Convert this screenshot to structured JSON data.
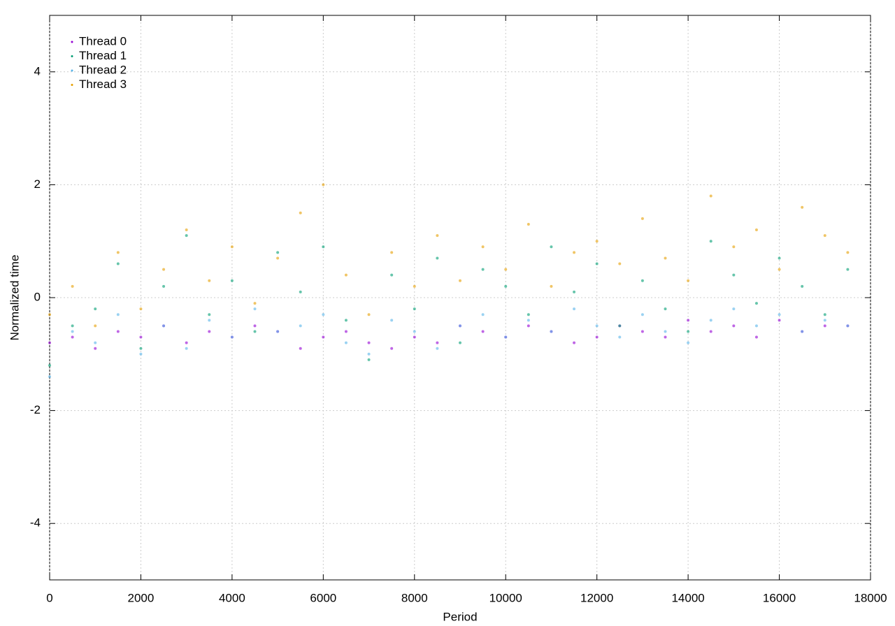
{
  "chart_data": {
    "type": "scatter",
    "xlabel": "Period",
    "ylabel": "Normalized time",
    "xlim": [
      0,
      18000
    ],
    "ylim": [
      -5,
      5
    ],
    "xticks": [
      0,
      2000,
      4000,
      6000,
      8000,
      10000,
      12000,
      14000,
      16000,
      18000
    ],
    "yticks": [
      -4,
      -2,
      0,
      2,
      4
    ],
    "grid": true,
    "legend": "upper-left",
    "x": [
      0,
      500,
      1000,
      1500,
      2000,
      2500,
      3000,
      3500,
      4000,
      4500,
      5000,
      5500,
      6000,
      6500,
      7000,
      7500,
      8000,
      8500,
      9000,
      9500,
      10000,
      10500,
      11000,
      11500,
      12000,
      12500,
      13000,
      13500,
      14000,
      14500,
      15000,
      15500,
      16000,
      16500,
      17000,
      17500
    ],
    "series": [
      {
        "name": "Thread 0",
        "color": "#9400d3",
        "values": [
          -0.8,
          -0.7,
          -0.9,
          -0.6,
          -0.7,
          -0.5,
          -0.8,
          -0.6,
          -0.7,
          -0.5,
          -0.6,
          -0.9,
          -0.7,
          -0.6,
          -0.8,
          -0.9,
          -0.7,
          -0.8,
          -0.5,
          -0.6,
          -0.7,
          -0.5,
          -0.6,
          -0.8,
          -0.7,
          -0.5,
          -0.6,
          -0.7,
          -0.4,
          -0.6,
          -0.5,
          -0.7,
          -0.4,
          -0.6,
          -0.5,
          -0.5
        ]
      },
      {
        "name": "Thread 1",
        "color": "#009e73",
        "values": [
          -1.2,
          -0.5,
          -0.2,
          0.6,
          -0.9,
          0.2,
          1.1,
          -0.3,
          0.3,
          -0.6,
          0.8,
          0.1,
          0.9,
          -0.4,
          -1.1,
          0.4,
          -0.2,
          0.7,
          -0.8,
          0.5,
          0.2,
          -0.3,
          0.9,
          0.1,
          0.6,
          -0.5,
          0.3,
          -0.2,
          -0.6,
          1.0,
          0.4,
          -0.1,
          0.7,
          0.2,
          -0.3,
          0.5
        ]
      },
      {
        "name": "Thread 2",
        "color": "#56b4e9",
        "values": [
          -1.4,
          -0.6,
          -0.8,
          -0.3,
          -1.0,
          -0.5,
          -0.9,
          -0.4,
          -0.7,
          -0.2,
          -0.6,
          -0.5,
          -0.3,
          -0.8,
          -1.0,
          -0.4,
          -0.6,
          -0.9,
          -0.5,
          -0.3,
          -0.7,
          -0.4,
          -0.6,
          -0.2,
          -0.5,
          -0.7,
          -0.3,
          -0.6,
          -0.8,
          -0.4,
          -0.2,
          -0.5,
          -0.3,
          -0.6,
          -0.4,
          -0.5
        ]
      },
      {
        "name": "Thread 3",
        "color": "#e69f00",
        "values": [
          -0.3,
          0.2,
          -0.5,
          0.8,
          -0.2,
          0.5,
          1.2,
          0.3,
          0.9,
          -0.1,
          0.7,
          1.5,
          2.0,
          0.4,
          -0.3,
          0.8,
          0.2,
          1.1,
          0.3,
          0.9,
          0.5,
          1.3,
          0.2,
          0.8,
          1.0,
          0.6,
          1.4,
          0.7,
          0.3,
          1.8,
          0.9,
          1.2,
          0.5,
          1.6,
          1.1,
          0.8
        ]
      }
    ]
  }
}
